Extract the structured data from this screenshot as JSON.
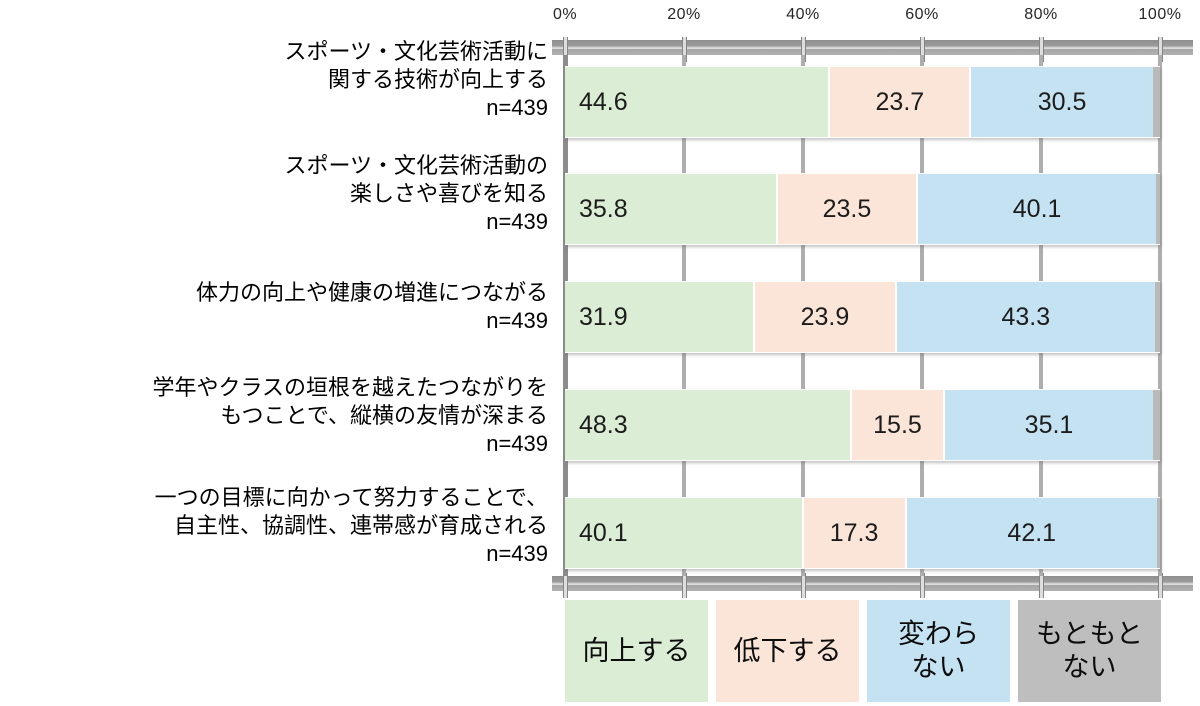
{
  "axis": {
    "ticks": [
      "0%",
      "20%",
      "40%",
      "60%",
      "80%",
      "100%"
    ]
  },
  "rows": [
    {
      "label_lines": [
        "スポーツ・文化芸術活動に",
        "関する技術が向上する"
      ],
      "n": "n=439"
    },
    {
      "label_lines": [
        "スポーツ・文化芸術活動の",
        "楽しさや喜びを知る"
      ],
      "n": "n=439"
    },
    {
      "label_lines": [
        "体力の向上や健康の増進につながる"
      ],
      "n": "n=439"
    },
    {
      "label_lines": [
        "学年やクラスの垣根を越えたつながりを",
        "もつことで、縦横の友情が深まる"
      ],
      "n": "n=439"
    },
    {
      "label_lines": [
        "一つの目標に向かって努力することで、",
        "自主性、協調性、連帯感が育成される"
      ],
      "n": "n=439"
    }
  ],
  "legend": {
    "items": [
      {
        "label_lines": [
          "向上する"
        ],
        "color": "#dbedd5"
      },
      {
        "label_lines": [
          "低下する"
        ],
        "color": "#fbe5d8"
      },
      {
        "label_lines": [
          "変わら",
          "ない"
        ],
        "color": "#c5e2f2"
      },
      {
        "label_lines": [
          "もともと",
          "ない"
        ],
        "color": "#bebebe"
      }
    ]
  },
  "chart_data": {
    "type": "bar",
    "orientation": "horizontal-stacked",
    "title": "",
    "xlabel": "",
    "ylabel": "",
    "xlim": [
      0,
      100
    ],
    "x_ticks": [
      "0%",
      "20%",
      "40%",
      "60%",
      "80%",
      "100%"
    ],
    "grid": true,
    "legend_position": "bottom",
    "categories": [
      "スポーツ・文化芸術活動に関する技術が向上する n=439",
      "スポーツ・文化芸術活動の楽しさや喜びを知る n=439",
      "体力の向上や健康の増進につながる n=439",
      "学年やクラスの垣根を越えたつながりをもつことで、縦横の友情が深まる n=439",
      "一つの目標に向かって努力することで、自主性、協調性、連帯感が育成される n=439"
    ],
    "series": [
      {
        "name": "向上する",
        "key": "improve",
        "color": "#dbedd5",
        "labels_visible": true,
        "values": [
          44.6,
          35.8,
          31.9,
          48.3,
          40.1
        ]
      },
      {
        "name": "低下する",
        "key": "decline",
        "color": "#fbe5d8",
        "labels_visible": true,
        "values": [
          23.7,
          23.5,
          23.9,
          15.5,
          17.3
        ]
      },
      {
        "name": "変わらない",
        "key": "no-change",
        "color": "#c5e2f2",
        "labels_visible": true,
        "values": [
          30.5,
          40.1,
          43.3,
          35.1,
          42.1
        ]
      },
      {
        "name": "もともとない",
        "key": "originally-none",
        "color": "#b9b9b9",
        "labels_visible": false,
        "values": [
          1.2,
          0.6,
          0.9,
          1.1,
          0.5
        ]
      }
    ]
  }
}
